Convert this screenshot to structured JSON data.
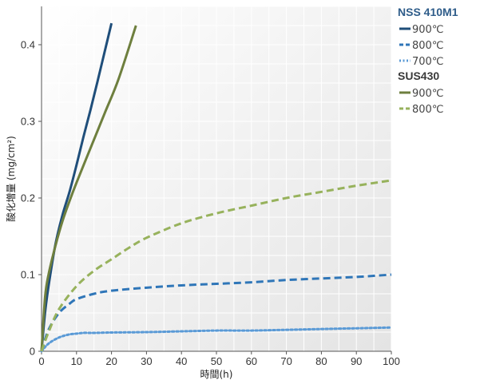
{
  "chart_data": {
    "type": "line",
    "xlabel": "時間(h)",
    "ylabel": "酸化増量 (mg/cm²)",
    "xlim": [
      0,
      100
    ],
    "ylim": [
      0,
      0.45
    ],
    "xticks": [
      0,
      10,
      20,
      30,
      40,
      50,
      60,
      70,
      80,
      90,
      100
    ],
    "yticks": [
      0,
      0.1,
      0.2,
      0.3,
      0.4
    ],
    "xtick_labels": [
      "0",
      "10",
      "20",
      "30",
      "40",
      "50",
      "60",
      "70",
      "80",
      "90",
      "100"
    ],
    "ytick_labels": [
      "0",
      "0.1",
      "0.2",
      "0.3",
      "0.4"
    ],
    "grid": true,
    "legend_position": "right",
    "legend_groups": [
      {
        "name": "NSS 410M1",
        "color": "#2f5d8a"
      },
      {
        "name": "SUS430",
        "color": "#3a3a3a"
      }
    ],
    "series": [
      {
        "group": "NSS 410M1",
        "name": "900℃",
        "color": "#1f4e7a",
        "style": "solid",
        "width": 3,
        "x": [
          0,
          1,
          2,
          4,
          6,
          8,
          10,
          12,
          14,
          16,
          18,
          20
        ],
        "y": [
          0,
          0.05,
          0.085,
          0.14,
          0.178,
          0.208,
          0.243,
          0.28,
          0.315,
          0.352,
          0.39,
          0.428
        ]
      },
      {
        "group": "NSS 410M1",
        "name": "800℃",
        "color": "#2f76b8",
        "style": "dashed",
        "width": 3,
        "x": [
          0,
          2,
          5,
          8,
          10,
          15,
          20,
          30,
          40,
          50,
          60,
          70,
          80,
          90,
          100
        ],
        "y": [
          0,
          0.028,
          0.05,
          0.062,
          0.068,
          0.075,
          0.079,
          0.083,
          0.086,
          0.088,
          0.09,
          0.093,
          0.095,
          0.097,
          0.1
        ]
      },
      {
        "group": "NSS 410M1",
        "name": "700℃",
        "color": "#5a9ad6",
        "style": "dotted",
        "width": 3,
        "x": [
          0,
          2,
          5,
          8,
          10,
          12,
          15,
          20,
          30,
          40,
          50,
          60,
          70,
          80,
          90,
          100
        ],
        "y": [
          0,
          0.01,
          0.018,
          0.022,
          0.023,
          0.024,
          0.024,
          0.0245,
          0.025,
          0.026,
          0.027,
          0.027,
          0.028,
          0.029,
          0.03,
          0.031
        ]
      },
      {
        "group": "SUS430",
        "name": "900℃",
        "color": "#6e7f3e",
        "style": "solid",
        "width": 3,
        "x": [
          0,
          1,
          2,
          4,
          6,
          8,
          10,
          14,
          18,
          22,
          27
        ],
        "y": [
          0,
          0.07,
          0.1,
          0.138,
          0.17,
          0.196,
          0.22,
          0.265,
          0.31,
          0.355,
          0.425
        ]
      },
      {
        "group": "SUS430",
        "name": "800℃",
        "color": "#97b25c",
        "style": "dashed",
        "width": 3,
        "x": [
          0,
          2,
          5,
          10,
          15,
          20,
          25,
          30,
          40,
          50,
          60,
          70,
          80,
          90,
          100
        ],
        "y": [
          0,
          0.025,
          0.055,
          0.085,
          0.105,
          0.12,
          0.135,
          0.148,
          0.167,
          0.18,
          0.19,
          0.2,
          0.208,
          0.216,
          0.223
        ]
      }
    ]
  }
}
